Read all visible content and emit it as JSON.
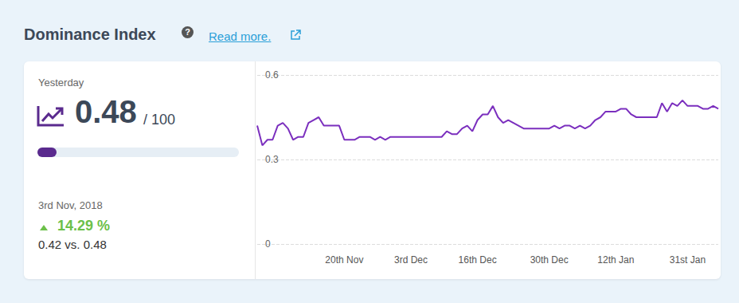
{
  "header": {
    "title": "Dominance Index",
    "link": "Read more."
  },
  "summary": {
    "label": "Yesterday",
    "value": "0.48",
    "out_of": "/ 100",
    "compare_date": "3rd Nov, 2018",
    "change": "14.29 %",
    "comparison": "0.42 vs. 0.48"
  },
  "chart_data": {
    "type": "line",
    "color": "#7b2fbe",
    "grid": true,
    "categories": [
      null,
      null,
      null,
      null,
      null,
      null,
      null,
      null,
      null,
      null,
      null,
      null,
      null,
      null,
      null,
      null,
      null,
      "20th Nov",
      null,
      null,
      null,
      null,
      null,
      null,
      null,
      null,
      null,
      null,
      null,
      null,
      "3rd Dec",
      null,
      null,
      null,
      null,
      null,
      null,
      null,
      null,
      null,
      null,
      null,
      null,
      "16th Dec",
      null,
      null,
      null,
      null,
      null,
      null,
      null,
      null,
      null,
      null,
      null,
      null,
      null,
      "30th Dec",
      null,
      null,
      null,
      null,
      null,
      null,
      null,
      null,
      null,
      null,
      null,
      null,
      "12th Jan",
      null,
      null,
      null,
      null,
      null,
      null,
      null,
      null,
      null,
      null,
      null,
      null,
      null,
      "31st Jan",
      null,
      null,
      null,
      null,
      null,
      null
    ],
    "values": [
      0.42,
      0.35,
      0.37,
      0.37,
      0.42,
      0.43,
      0.41,
      0.37,
      0.38,
      0.38,
      0.43,
      0.44,
      0.45,
      0.42,
      0.42,
      0.42,
      0.42,
      0.37,
      0.37,
      0.37,
      0.38,
      0.38,
      0.38,
      0.37,
      0.38,
      0.37,
      0.38,
      0.38,
      0.38,
      0.38,
      0.38,
      0.38,
      0.38,
      0.38,
      0.38,
      0.38,
      0.38,
      0.4,
      0.39,
      0.39,
      0.41,
      0.42,
      0.4,
      0.44,
      0.46,
      0.46,
      0.49,
      0.45,
      0.43,
      0.44,
      0.43,
      0.42,
      0.41,
      0.41,
      0.41,
      0.41,
      0.41,
      0.41,
      0.42,
      0.41,
      0.42,
      0.42,
      0.41,
      0.42,
      0.41,
      0.42,
      0.44,
      0.45,
      0.47,
      0.47,
      0.47,
      0.48,
      0.48,
      0.46,
      0.45,
      0.45,
      0.45,
      0.45,
      0.45,
      0.5,
      0.47,
      0.5,
      0.49,
      0.51,
      0.49,
      0.49,
      0.49,
      0.48,
      0.48,
      0.49,
      0.48
    ],
    "ylim": [
      0,
      0.6
    ],
    "yticks": [
      0,
      0.3,
      0.6
    ]
  }
}
